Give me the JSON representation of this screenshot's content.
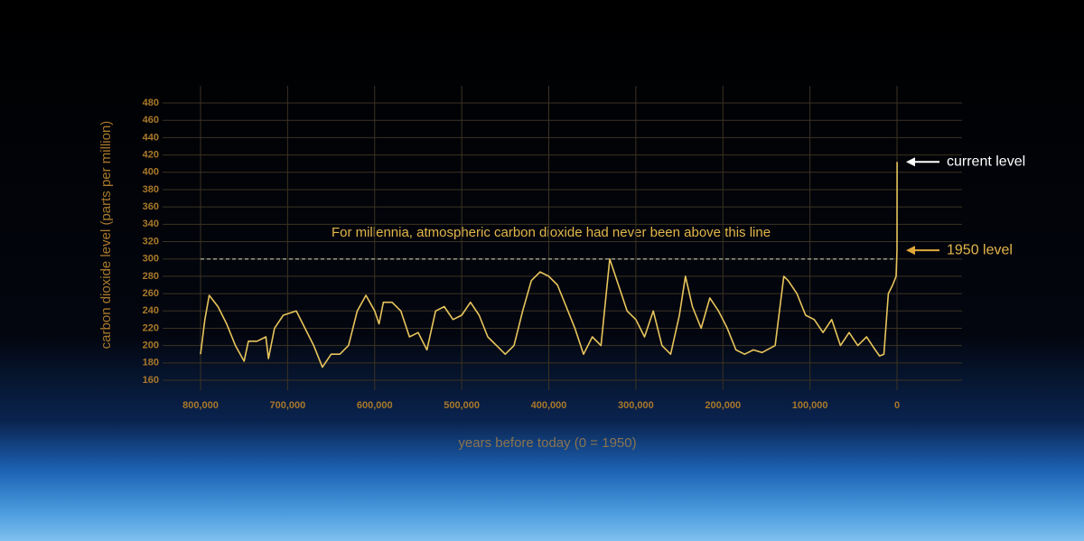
{
  "chart_data": {
    "type": "line",
    "y_label": "carbon dioxide level (parts per million)",
    "x_label": "years before today (0 = 1950)",
    "annotation": "For millennia, atmospheric carbon dioxide had never been above this line",
    "reference_line": 300,
    "markers": [
      {
        "text": "current level",
        "value": 412,
        "color": "#ffffff"
      },
      {
        "text": "1950 level",
        "value": 310,
        "color": "#e0a83a"
      }
    ],
    "color": "#e8c55c",
    "grid": true,
    "xlim": [
      800000,
      0
    ],
    "ylim": [
      160,
      480
    ],
    "xticks": [
      {
        "value": 800000,
        "label": "800,000"
      },
      {
        "value": 700000,
        "label": "700,000"
      },
      {
        "value": 600000,
        "label": "600,000"
      },
      {
        "value": 500000,
        "label": "500,000"
      },
      {
        "value": 400000,
        "label": "400,000"
      },
      {
        "value": 300000,
        "label": "300,000"
      },
      {
        "value": 200000,
        "label": "200,000"
      },
      {
        "value": 100000,
        "label": "100,000"
      },
      0
    ],
    "yticks": [
      160,
      180,
      200,
      220,
      240,
      260,
      280,
      300,
      320,
      340,
      360,
      380,
      400,
      420,
      440,
      460,
      480
    ],
    "x": [
      800000,
      795000,
      790000,
      780000,
      770000,
      760000,
      750000,
      745000,
      735000,
      725000,
      722000,
      715000,
      705000,
      690000,
      680000,
      670000,
      660000,
      650000,
      640000,
      630000,
      620000,
      610000,
      600000,
      595000,
      590000,
      580000,
      570000,
      560000,
      550000,
      540000,
      530000,
      520000,
      510000,
      500000,
      490000,
      480000,
      470000,
      460000,
      450000,
      440000,
      430000,
      420000,
      410000,
      400000,
      390000,
      380000,
      370000,
      360000,
      350000,
      340000,
      330000,
      320000,
      310000,
      300000,
      290000,
      280000,
      270000,
      260000,
      250000,
      243000,
      235000,
      225000,
      215000,
      205000,
      195000,
      185000,
      175000,
      165000,
      155000,
      140000,
      130000,
      125000,
      115000,
      105000,
      95000,
      85000,
      75000,
      65000,
      55000,
      45000,
      35000,
      25000,
      20000,
      15000,
      10000,
      5000,
      1000,
      0,
      -70
    ],
    "values": [
      190,
      230,
      258,
      245,
      225,
      200,
      182,
      205,
      205,
      210,
      185,
      220,
      235,
      240,
      220,
      200,
      175,
      190,
      190,
      200,
      240,
      258,
      240,
      225,
      250,
      250,
      240,
      210,
      215,
      195,
      240,
      245,
      230,
      235,
      250,
      235,
      210,
      200,
      190,
      200,
      240,
      275,
      285,
      280,
      270,
      245,
      220,
      190,
      210,
      200,
      300,
      270,
      240,
      230,
      210,
      240,
      200,
      190,
      235,
      280,
      245,
      220,
      255,
      240,
      220,
      195,
      190,
      195,
      192,
      200,
      280,
      275,
      260,
      235,
      230,
      215,
      230,
      200,
      215,
      200,
      210,
      195,
      188,
      190,
      260,
      270,
      280,
      310,
      412
    ]
  }
}
